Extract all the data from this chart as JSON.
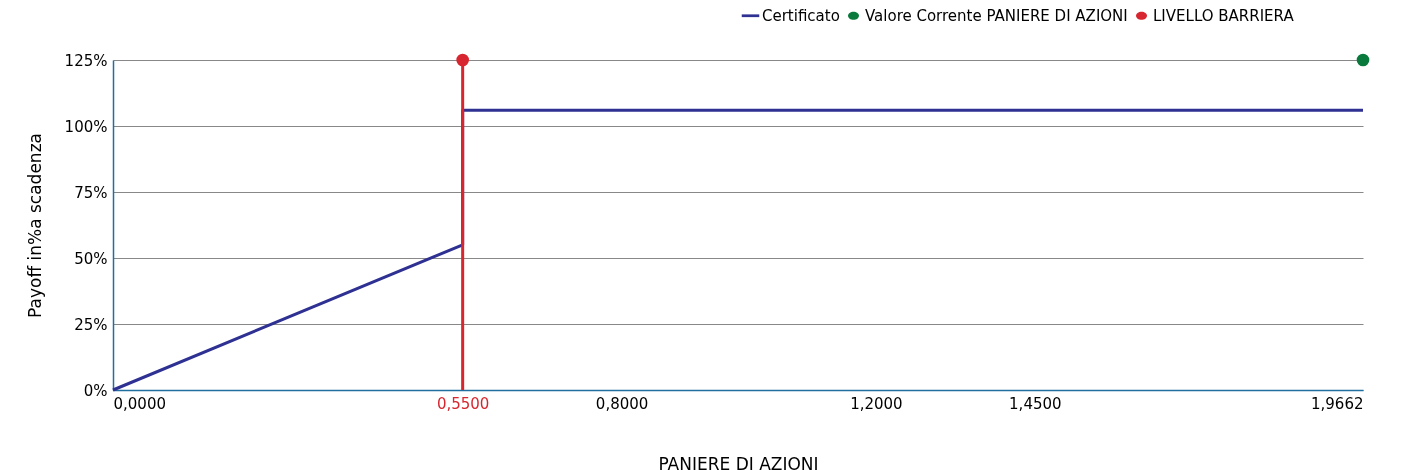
{
  "chart_data": {
    "type": "line",
    "xlabel": "PANIERE DI AZIONI",
    "ylabel": "Payoff in%a scadenza",
    "xlim": [
      0,
      1.9662
    ],
    "xticks": [
      {
        "value": 0,
        "label": "0,0000"
      },
      {
        "value": 0.55,
        "label": "0,5500"
      },
      {
        "value": 0.8,
        "label": "0,8000"
      },
      {
        "value": 1.2,
        "label": "1,2000"
      },
      {
        "value": 1.45,
        "label": "1,4500"
      },
      {
        "value": 1.9662,
        "label": "1,9662"
      }
    ],
    "ylim": [
      0,
      125
    ],
    "yticks": [
      {
        "value": 0,
        "label": "0%"
      },
      {
        "value": 25,
        "label": "25%"
      },
      {
        "value": 50,
        "label": "50%"
      },
      {
        "value": 75,
        "label": "75%"
      },
      {
        "value": 100,
        "label": "100%"
      },
      {
        "value": 125,
        "label": "125%"
      }
    ],
    "grid": "y",
    "legend": "top right",
    "series": [
      {
        "name": "Certificato",
        "marker": "none",
        "color": "#2e3192",
        "x": [
          0,
          0.55,
          0.55,
          1.9662
        ],
        "values": [
          0,
          55,
          106,
          106
        ]
      },
      {
        "name": "Valore Corrente PANIERE DI AZIONI",
        "type": "scatter",
        "marker": "circle",
        "color": "#0a7a3c",
        "x": [
          1.9662
        ],
        "values": [
          125
        ]
      },
      {
        "name": "LIVELLO BARRIERA",
        "type": "scatter",
        "marker": "circle",
        "color": "#d7262f",
        "x": [
          0.55
        ],
        "values": [
          125
        ]
      }
    ],
    "ref_lines": [
      {
        "axis": "x",
        "value": 0.55,
        "color": "#d7262f"
      }
    ]
  }
}
